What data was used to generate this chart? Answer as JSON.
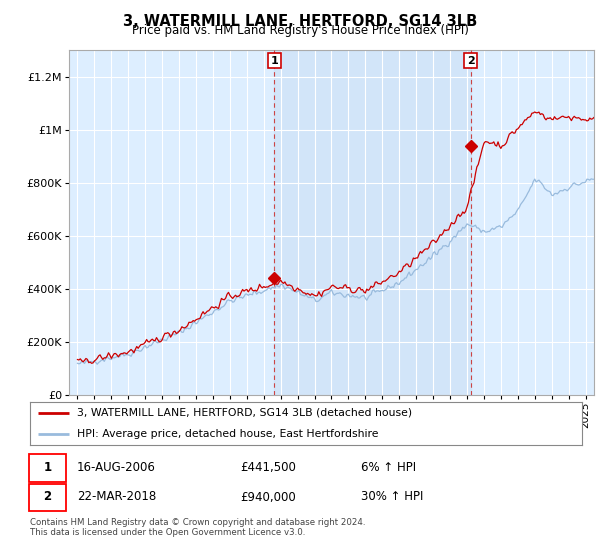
{
  "title": "3, WATERMILL LANE, HERTFORD, SG14 3LB",
  "subtitle": "Price paid vs. HM Land Registry's House Price Index (HPI)",
  "plot_bg": "#ddeeff",
  "fig_bg": "#ffffff",
  "red_color": "#cc0000",
  "blue_color": "#99bbdd",
  "red_label": "3, WATERMILL LANE, HERTFORD, SG14 3LB (detached house)",
  "blue_label": "HPI: Average price, detached house, East Hertfordshire",
  "sale1_date": "16-AUG-2006",
  "sale1_price": "£441,500",
  "sale1_info": "6% ↑ HPI",
  "sale2_date": "22-MAR-2018",
  "sale2_price": "£940,000",
  "sale2_info": "30% ↑ HPI",
  "footer": "Contains HM Land Registry data © Crown copyright and database right 2024.\nThis data is licensed under the Open Government Licence v3.0.",
  "sale1_x": 2006.62,
  "sale1_y": 441500,
  "sale2_x": 2018.22,
  "sale2_y": 940000,
  "ylim": [
    0,
    1300000
  ],
  "xlim": [
    1994.5,
    2025.5
  ],
  "yticks": [
    0,
    200000,
    400000,
    600000,
    800000,
    1000000,
    1200000
  ],
  "ytick_labels": [
    "£0",
    "£200K",
    "£400K",
    "£600K",
    "£800K",
    "£1M",
    "£1.2M"
  ]
}
